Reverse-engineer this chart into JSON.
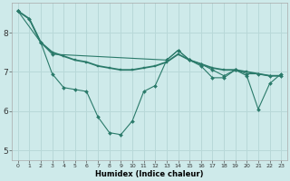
{
  "xlabel": "Humidex (Indice chaleur)",
  "xlim": [
    -0.5,
    23.5
  ],
  "ylim": [
    4.75,
    8.75
  ],
  "yticks": [
    5,
    6,
    7,
    8
  ],
  "xticks": [
    0,
    1,
    2,
    3,
    4,
    5,
    6,
    7,
    8,
    9,
    10,
    11,
    12,
    13,
    14,
    15,
    16,
    17,
    18,
    19,
    20,
    21,
    22,
    23
  ],
  "bg_color": "#ceeaea",
  "grid_color": "#b8d8d8",
  "line_color": "#2a7a6a",
  "line1_x": [
    0,
    1,
    2,
    3,
    4,
    5,
    6,
    7,
    8,
    9,
    10,
    11,
    12,
    13,
    14,
    15,
    16,
    17,
    18,
    19,
    20,
    21,
    22,
    23
  ],
  "line1_y": [
    8.55,
    8.35,
    7.75,
    6.95,
    6.6,
    6.55,
    6.5,
    5.85,
    5.45,
    5.4,
    5.75,
    6.5,
    6.65,
    7.3,
    7.55,
    7.3,
    7.15,
    6.85,
    6.85,
    7.05,
    6.9,
    6.05,
    6.7,
    6.95
  ],
  "line2_x": [
    0,
    2,
    3,
    13,
    14,
    15,
    16,
    17,
    18,
    19,
    20,
    21,
    22,
    23
  ],
  "line2_y": [
    8.55,
    7.75,
    7.45,
    7.3,
    7.55,
    7.3,
    7.2,
    7.05,
    6.9,
    7.05,
    6.95,
    6.95,
    6.9,
    6.9
  ],
  "line3_x": [
    0,
    1,
    2,
    3,
    4,
    5,
    6,
    7,
    8,
    9,
    10,
    11,
    12,
    13,
    14,
    15,
    16,
    17,
    18,
    19,
    20,
    21,
    22,
    23
  ],
  "line3_y": [
    8.55,
    8.35,
    7.75,
    7.5,
    7.4,
    7.3,
    7.25,
    7.15,
    7.1,
    7.05,
    7.05,
    7.1,
    7.15,
    7.25,
    7.45,
    7.3,
    7.2,
    7.1,
    7.05,
    7.05,
    7.0,
    6.95,
    6.9,
    6.9
  ]
}
